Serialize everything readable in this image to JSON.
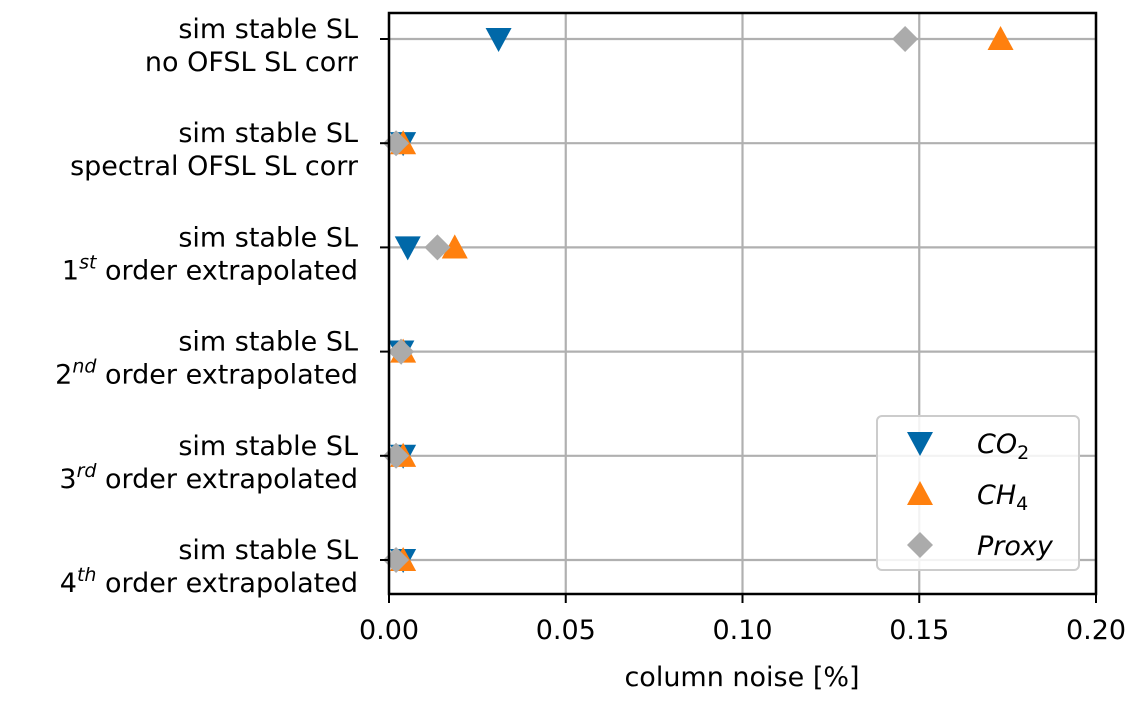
{
  "chart_data": {
    "type": "scatter",
    "xlabel": "column noise [%]",
    "ylabel": "",
    "xlim": [
      0,
      0.2
    ],
    "xticks": [
      "0.00",
      "0.05",
      "0.10",
      "0.15",
      "0.20"
    ],
    "grid": true,
    "legend_placement": "lower-right",
    "categories": [
      {
        "line1": "sim stable SL",
        "line2": "no OFSL SL corr",
        "sup": "",
        "prefix": "",
        "suffix": ""
      },
      {
        "line1": "sim stable SL",
        "line2": "spectral OFSL SL corr",
        "sup": "",
        "prefix": "",
        "suffix": ""
      },
      {
        "line1": "sim stable SL",
        "line2": "",
        "prefix": "1",
        "sup": "st",
        "suffix": " order extrapolated"
      },
      {
        "line1": "sim stable SL",
        "line2": "",
        "prefix": "2",
        "sup": "nd",
        "suffix": " order extrapolated"
      },
      {
        "line1": "sim stable SL",
        "line2": "",
        "prefix": "3",
        "sup": "rd",
        "suffix": " order extrapolated"
      },
      {
        "line1": "sim stable SL",
        "line2": "",
        "prefix": "4",
        "sup": "th",
        "suffix": " order extrapolated"
      }
    ],
    "series": [
      {
        "name": "CO2",
        "label_main": "CO",
        "label_sub": "2",
        "marker": "triangle-down",
        "color": "#0068a8",
        "values": [
          0.031,
          0.004,
          0.0053,
          0.0035,
          0.004,
          0.004
        ]
      },
      {
        "name": "CH4",
        "label_main": "CH",
        "label_sub": "4",
        "marker": "triangle-up",
        "color": "#ff800e",
        "values": [
          0.173,
          0.004,
          0.0186,
          0.004,
          0.004,
          0.004
        ]
      },
      {
        "name": "Proxy",
        "label_main": "Proxy",
        "label_sub": "",
        "marker": "diamond",
        "color": "#ababab",
        "values": [
          0.146,
          0.002,
          0.0137,
          0.0034,
          0.002,
          0.002
        ]
      }
    ]
  }
}
